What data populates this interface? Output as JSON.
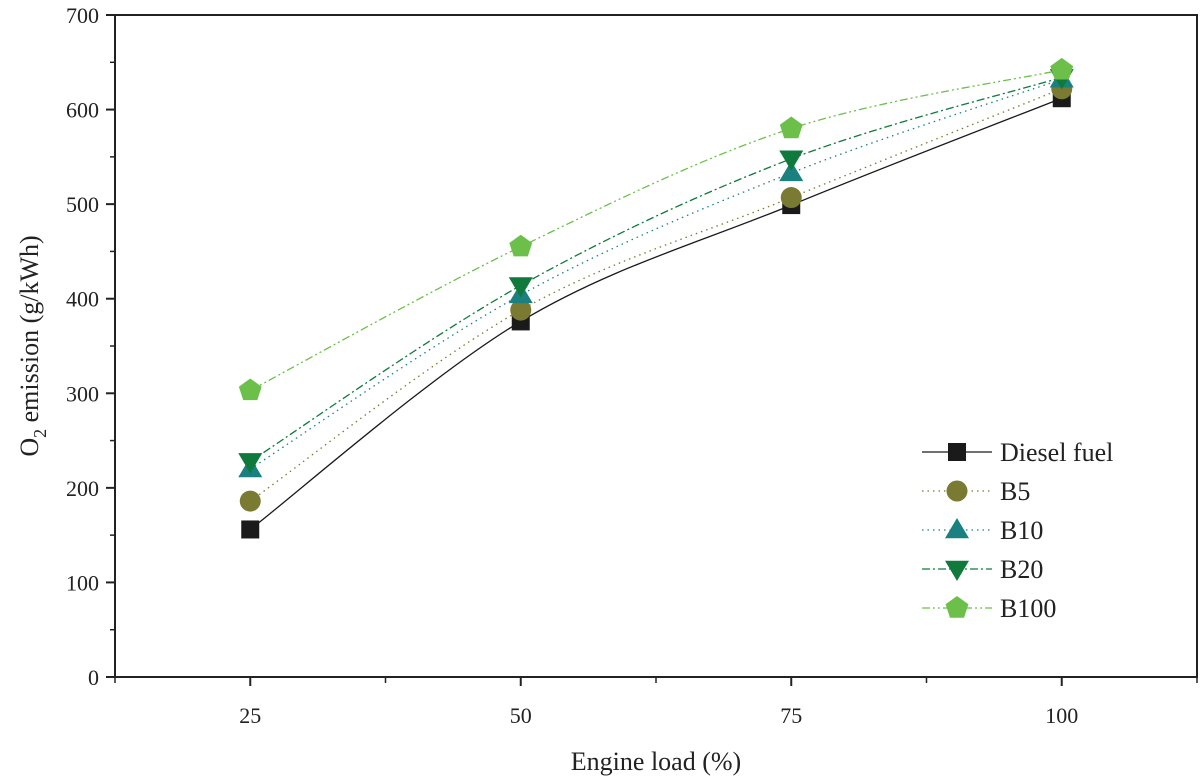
{
  "chart_data": {
    "type": "scatter",
    "xlabel": "Engine load (%)",
    "ylabel": {
      "main": "O",
      "sub": "2",
      "rest": " emission (g/kWh)"
    },
    "xlim": [
      12.5,
      112.5
    ],
    "ylim": [
      0,
      700
    ],
    "x_ticks": [
      25,
      50,
      75,
      100
    ],
    "y_ticks": [
      0,
      100,
      200,
      300,
      400,
      500,
      600,
      700
    ],
    "grid": false,
    "legend_position": "bottom-right",
    "x": [
      25,
      50,
      75,
      100
    ],
    "series": [
      {
        "name": "Diesel fuel",
        "values": [
          156,
          376,
          499,
          612
        ],
        "color": "#1a1a1a",
        "marker": "square",
        "line": "solid"
      },
      {
        "name": "B5",
        "values": [
          186,
          388,
          507,
          622
        ],
        "color": "#7a7a32",
        "marker": "circle",
        "line": "dotted"
      },
      {
        "name": "B10",
        "values": [
          220,
          404,
          533,
          632
        ],
        "color": "#1a8080",
        "marker": "triangle-up",
        "line": "dotted"
      },
      {
        "name": "B20",
        "values": [
          228,
          414,
          548,
          634
        ],
        "color": "#0f7a3c",
        "marker": "triangle-down",
        "line": "dashdot"
      },
      {
        "name": "B100",
        "values": [
          303,
          455,
          580,
          642
        ],
        "color": "#6cc04a",
        "marker": "pentagon",
        "line": "dashdotdot"
      }
    ]
  }
}
